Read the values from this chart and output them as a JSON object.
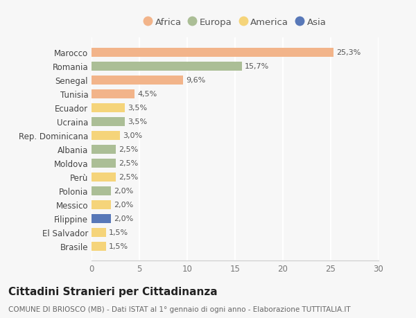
{
  "title": "Cittadini Stranieri per Cittadinanza",
  "subtitle": "COMUNE DI BRIOSCO (MB) - Dati ISTAT al 1° gennaio di ogni anno - Elaborazione TUTTITALIA.IT",
  "countries": [
    "Brasile",
    "El Salvador",
    "Filippine",
    "Messico",
    "Polonia",
    "Perù",
    "Moldova",
    "Albania",
    "Rep. Dominicana",
    "Ucraina",
    "Ecuador",
    "Tunisia",
    "Senegal",
    "Romania",
    "Marocco"
  ],
  "values": [
    1.5,
    1.5,
    2.0,
    2.0,
    2.0,
    2.5,
    2.5,
    2.5,
    3.0,
    3.5,
    3.5,
    4.5,
    9.6,
    15.7,
    25.3
  ],
  "labels": [
    "1,5%",
    "1,5%",
    "2,0%",
    "2,0%",
    "2,0%",
    "2,5%",
    "2,5%",
    "2,5%",
    "3,0%",
    "3,5%",
    "3,5%",
    "4,5%",
    "9,6%",
    "15,7%",
    "25,3%"
  ],
  "continents": [
    "America",
    "America",
    "Asia",
    "America",
    "Europa",
    "America",
    "Europa",
    "Europa",
    "America",
    "Europa",
    "America",
    "Africa",
    "Africa",
    "Europa",
    "Africa"
  ],
  "colors": {
    "Africa": "#F2B48A",
    "Europa": "#ABBE96",
    "America": "#F5D47A",
    "Asia": "#5878B8"
  },
  "legend_order": [
    "Africa",
    "Europa",
    "America",
    "Asia"
  ],
  "xlim": [
    0,
    30
  ],
  "xticks": [
    0,
    5,
    10,
    15,
    20,
    25,
    30
  ],
  "background_color": "#f7f7f7",
  "bar_height": 0.65,
  "label_fontsize": 8.0,
  "tick_label_fontsize": 8.5,
  "title_fontsize": 11,
  "subtitle_fontsize": 7.5,
  "legend_fontsize": 9.5
}
